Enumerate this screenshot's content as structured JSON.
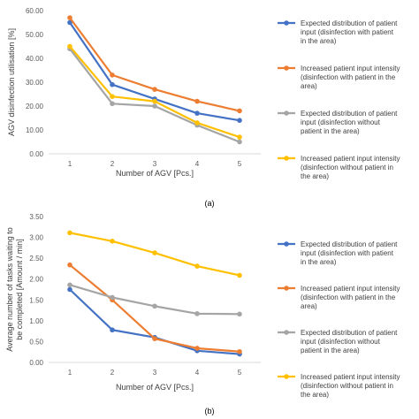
{
  "chart_data": [
    {
      "type": "line",
      "caption": "(a)",
      "xlabel": "Number of AGV [Pcs.]",
      "ylabel": "AGV disinfection utilisation [%]",
      "x": [
        1,
        2,
        3,
        4,
        5
      ],
      "x_tick_labels": [
        "1",
        "2",
        "3",
        "4",
        "5"
      ],
      "ylim": [
        0,
        60
      ],
      "y_tick_labels": [
        "0.00",
        "10.00",
        "20.00",
        "30.00",
        "40.00",
        "50.00",
        "60.00"
      ],
      "grid": false,
      "legend_position": "right",
      "series": [
        {
          "name": "Expected distribution of patient input  (disinfection with patient in the area)",
          "color": "#4472C4",
          "values": [
            55,
            29,
            23,
            17,
            14
          ]
        },
        {
          "name": "Increased patient input intensity (disinfection with patient in the area)",
          "color": "#ED7D31",
          "values": [
            57,
            33,
            27,
            22,
            18
          ]
        },
        {
          "name": "Expected distribution of patient input (disinfection without patient in the area)",
          "color": "#A5A5A5",
          "values": [
            44,
            21,
            20,
            12,
            5
          ]
        },
        {
          "name": "Increased patient input intensity (disinfection without patient in the area)",
          "color": "#FFC000",
          "values": [
            45,
            24,
            22,
            13,
            7
          ]
        }
      ]
    },
    {
      "type": "line",
      "caption": "(b)",
      "xlabel": "Number of AGV [Pcs.]",
      "ylabel": "Average number of tasks waiting to be completed [Amount / min]",
      "x": [
        1,
        2,
        3,
        4,
        5
      ],
      "x_tick_labels": [
        "1",
        "2",
        "3",
        "4",
        "5"
      ],
      "ylim": [
        0,
        3.5
      ],
      "y_tick_labels": [
        "0.00",
        "0.50",
        "1.00",
        "1.50",
        "2.00",
        "2.50",
        "3.00",
        "3.50"
      ],
      "grid": false,
      "legend_position": "right",
      "series": [
        {
          "name": "Expected distribution of patient input  (disinfection with patient in the area)",
          "color": "#4472C4",
          "values": [
            1.75,
            0.78,
            0.6,
            0.28,
            0.2
          ]
        },
        {
          "name": "Increased patient input intensity (disinfection with patient in the area)",
          "color": "#ED7D31",
          "values": [
            2.34,
            1.5,
            0.57,
            0.34,
            0.26
          ]
        },
        {
          "name": "Expected distribution of patient input (disinfection without patient in the area)",
          "color": "#A5A5A5",
          "values": [
            1.86,
            1.56,
            1.35,
            1.17,
            1.16
          ]
        },
        {
          "name": "Increased patient input intensity (disinfection without patient in the area)",
          "color": "#FFC000",
          "values": [
            3.11,
            2.91,
            2.63,
            2.31,
            2.09
          ]
        }
      ]
    }
  ]
}
